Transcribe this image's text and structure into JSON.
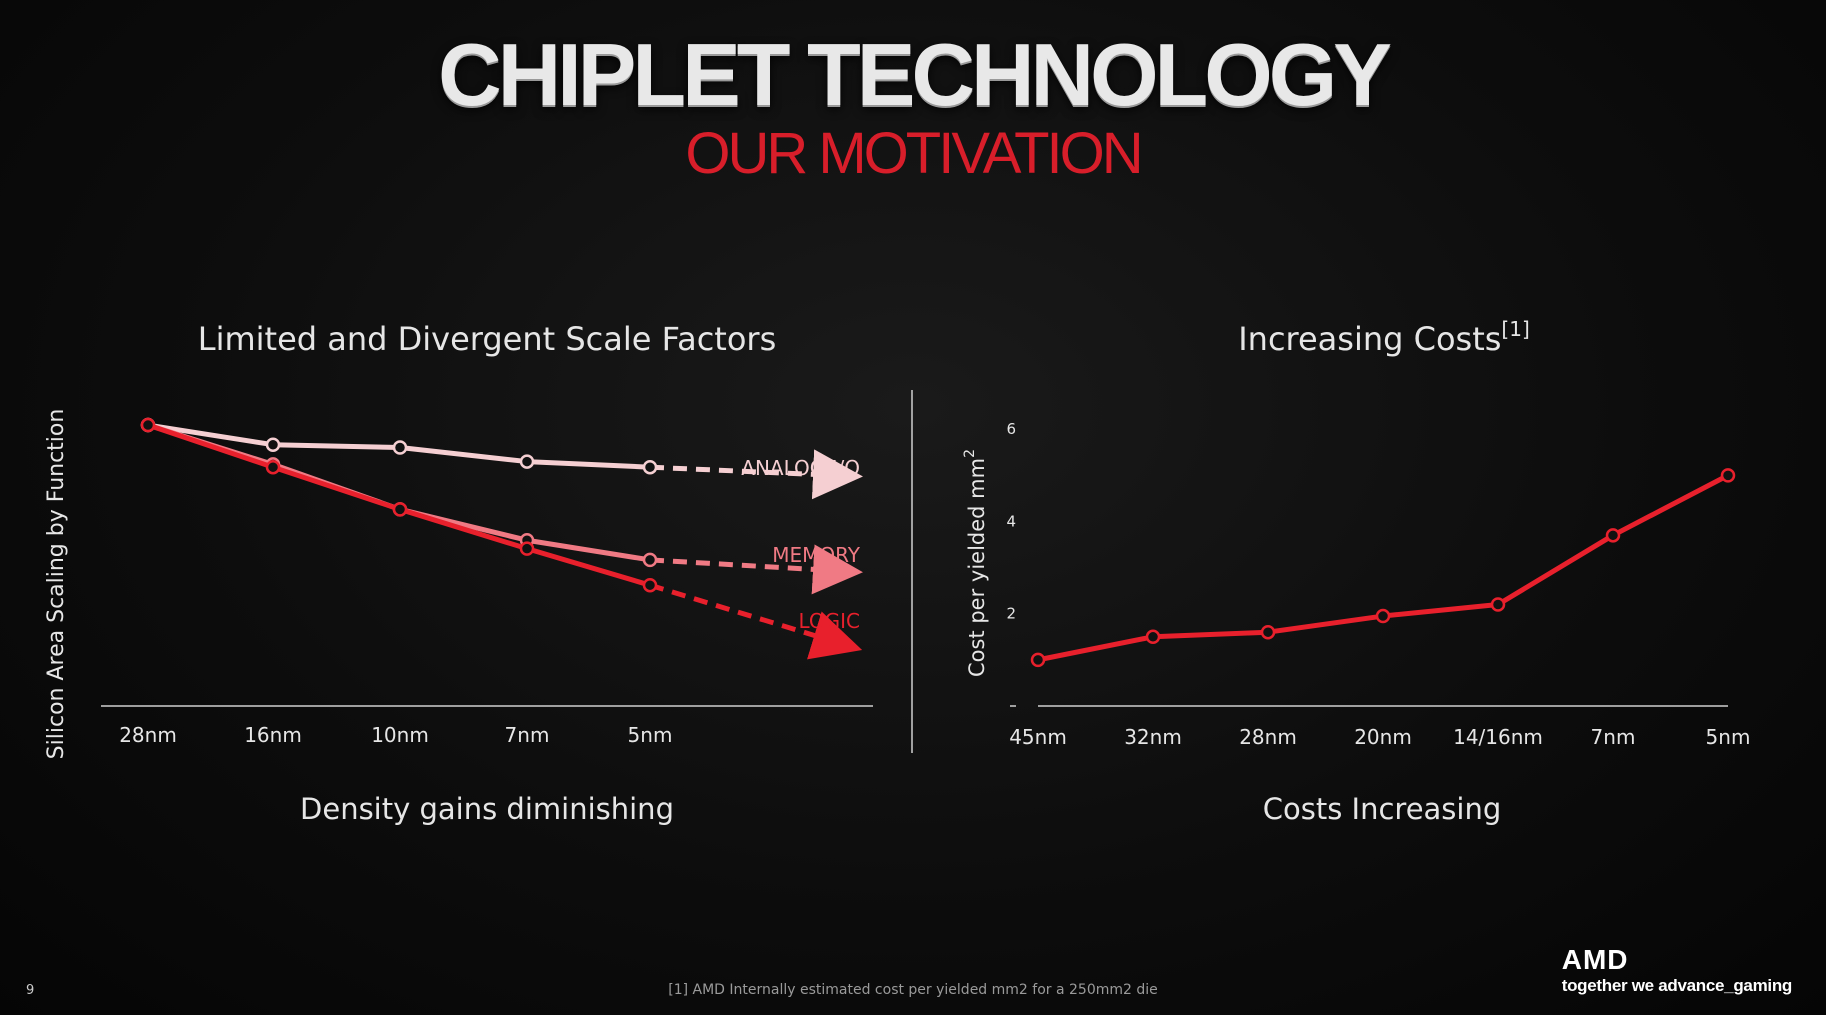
{
  "slide": {
    "title": "CHIPLET TECHNOLOGY",
    "subtitle": "OUR MOTIVATION",
    "page_number": "9",
    "footnote": "[1] AMD Internally estimated cost per yielded mm2 for a 250mm2 die",
    "brand": {
      "logo": "AMD",
      "tagline": "together we advance_gaming"
    },
    "colors": {
      "accent": "#d81e2a",
      "logic": "#e8202c",
      "memory": "#f07a84",
      "analog": "#f5cfd2"
    }
  },
  "chart_data": [
    {
      "type": "line",
      "title": "Limited and Divergent Scale Factors",
      "ylabel": "Silicon Area Scaling by Function",
      "caption": "Density gains diminishing",
      "categories": [
        "28nm",
        "16nm",
        "10nm",
        "7nm",
        "5nm"
      ],
      "ylim": [
        0,
        1.05
      ],
      "series": [
        {
          "name": "ANALOG I/O",
          "values": [
            1.0,
            0.93,
            0.92,
            0.87,
            0.85
          ],
          "projected_end": 0.82
        },
        {
          "name": "MEMORY",
          "values": [
            1.0,
            0.86,
            0.7,
            0.59,
            0.52
          ],
          "projected_end": 0.48
        },
        {
          "name": "LOGIC",
          "values": [
            1.0,
            0.85,
            0.7,
            0.56,
            0.43
          ],
          "projected_end": 0.22
        }
      ]
    },
    {
      "type": "line",
      "title": "Increasing Costs",
      "title_sup": "[1]",
      "ylabel": "Cost per yielded mm",
      "ylabel_sup": "2",
      "caption": "Costs Increasing",
      "categories": [
        "45nm",
        "32nm",
        "28nm",
        "20nm",
        "14/16nm",
        "7nm",
        "5nm"
      ],
      "yticks": [
        2,
        4,
        6
      ],
      "ylim": [
        0,
        6.2
      ],
      "series": [
        {
          "name": "",
          "values": [
            1.0,
            1.5,
            1.6,
            1.95,
            2.2,
            3.7,
            5.0
          ]
        }
      ]
    }
  ]
}
